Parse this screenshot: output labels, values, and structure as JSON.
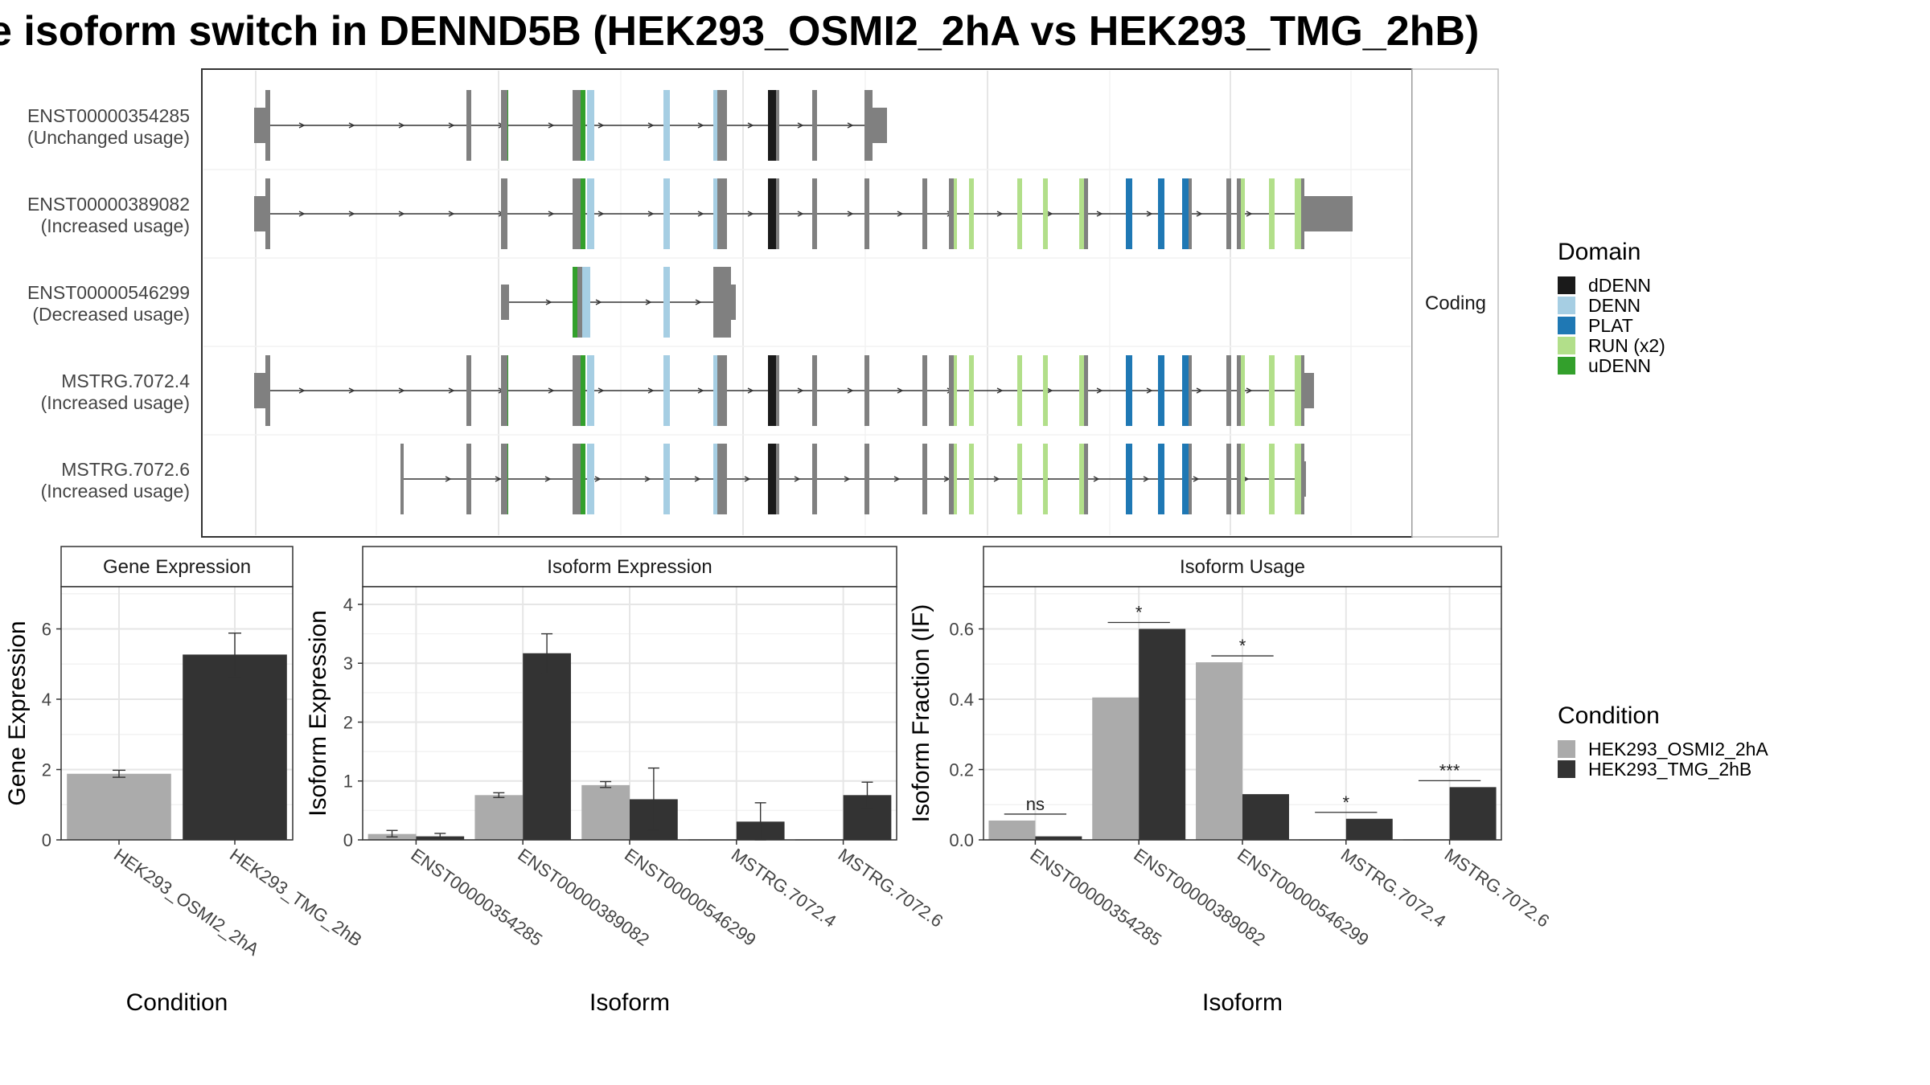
{
  "title": "e isoform switch in DENND5B (HEK293_OSMI2_2hA vs HEK293_TMG_2hB)",
  "colors": {
    "condition_a": "#ababab",
    "condition_b": "#333333",
    "exon": "#808080",
    "dDENN": "#1a1a1a",
    "DENN": "#a6cee3",
    "PLAT": "#1f78b4",
    "RUN (x2)": "#b2df8a",
    "uDENN": "#33a02c"
  },
  "structure_panel": {
    "strip_label": "Coding",
    "isoforms": [
      {
        "id": "ENST00000354285",
        "usage": "(Unchanged usage)"
      },
      {
        "id": "ENST00000389082",
        "usage": "(Increased usage)"
      },
      {
        "id": "ENST00000546299",
        "usage": "(Decreased usage)"
      },
      {
        "id": "MSTRG.7072.4",
        "usage": "(Increased usage)"
      },
      {
        "id": "MSTRG.7072.6",
        "usage": "(Increased usage)"
      }
    ]
  },
  "legend_domain": {
    "title": "Domain",
    "items": [
      {
        "label": "dDENN",
        "color": "#1a1a1a"
      },
      {
        "label": "DENN",
        "color": "#a6cee3"
      },
      {
        "label": "PLAT",
        "color": "#1f78b4"
      },
      {
        "label": "RUN (x2)",
        "color": "#b2df8a"
      },
      {
        "label": "uDENN",
        "color": "#33a02c"
      }
    ]
  },
  "legend_condition": {
    "title": "Condition",
    "items": [
      {
        "label": "HEK293_OSMI2_2hA",
        "color": "#ababab"
      },
      {
        "label": "HEK293_TMG_2hB",
        "color": "#333333"
      }
    ]
  },
  "chart_data": [
    {
      "type": "bar",
      "panel": "Gene Expression",
      "xlabel": "Condition",
      "ylabel": "Gene Expression",
      "ylim": [
        0,
        7.2
      ],
      "yticks": [
        0,
        2,
        4,
        6
      ],
      "categories": [
        "HEK293_OSMI2_2hA",
        "HEK293_TMG_2hB"
      ],
      "values": [
        1.88,
        5.27
      ],
      "errors": [
        [
          1.78,
          1.98
        ],
        [
          4.65,
          5.88
        ]
      ],
      "colors": [
        "#ababab",
        "#333333"
      ]
    },
    {
      "type": "bar",
      "panel": "Isoform Expression",
      "xlabel": "Isoform",
      "ylabel": "Isoform Expression",
      "ylim": [
        0,
        4.3
      ],
      "yticks": [
        0,
        1,
        2,
        3,
        4
      ],
      "categories": [
        "ENST00000354285",
        "ENST00000389082",
        "ENST00000546299",
        "MSTRG.7072.4",
        "MSTRG.7072.6"
      ],
      "series": [
        {
          "name": "HEK293_OSMI2_2hA",
          "values": [
            0.1,
            0.76,
            0.93,
            0.0,
            0.0
          ],
          "errors": [
            [
              0.05,
              0.16
            ],
            [
              0.72,
              0.8
            ],
            [
              0.89,
              0.99
            ],
            null,
            null
          ]
        },
        {
          "name": "HEK293_TMG_2hB",
          "values": [
            0.06,
            3.17,
            0.69,
            0.31,
            0.76
          ],
          "errors": [
            [
              0.02,
              0.11
            ],
            [
              2.83,
              3.5
            ],
            [
              0.16,
              1.22
            ],
            [
              0.0,
              0.63
            ],
            [
              0.55,
              0.98
            ]
          ]
        }
      ]
    },
    {
      "type": "bar",
      "panel": "Isoform Usage",
      "xlabel": "Isoform",
      "ylabel": "Isoform Fraction (IF)",
      "ylim": [
        0,
        0.72
      ],
      "yticks": [
        0.0,
        0.2,
        0.4,
        0.6
      ],
      "ytick_labels": [
        "0.0",
        "0.2",
        "0.4",
        "0.6"
      ],
      "categories": [
        "ENST00000354285",
        "ENST00000389082",
        "ENST00000546299",
        "MSTRG.7072.4",
        "MSTRG.7072.6"
      ],
      "series": [
        {
          "name": "HEK293_OSMI2_2hA",
          "values": [
            0.055,
            0.405,
            0.505,
            0.0,
            0.0
          ]
        },
        {
          "name": "HEK293_TMG_2hB",
          "values": [
            0.01,
            0.6,
            0.13,
            0.06,
            0.15
          ]
        }
      ],
      "significance": [
        "ns",
        "*",
        "*",
        "*",
        "***"
      ]
    }
  ]
}
